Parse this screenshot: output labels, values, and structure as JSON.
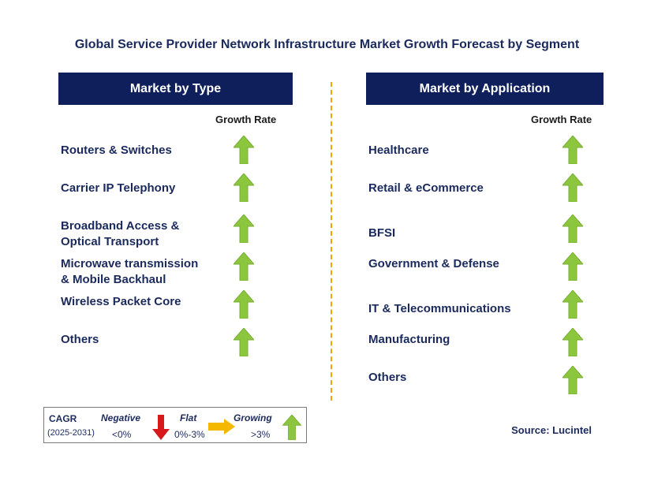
{
  "title": "Global Service Provider Network Infrastructure Market Growth Forecast by Segment",
  "left_panel": {
    "header": "Market by Type",
    "growth_label": "Growth Rate",
    "items": [
      {
        "line1": "Routers & Switches",
        "line2": ""
      },
      {
        "line1": "Carrier IP Telephony",
        "line2": ""
      },
      {
        "line1": "Broadband Access &",
        "line2": "Optical Transport"
      },
      {
        "line1": "Microwave transmission",
        "line2": "& Mobile Backhaul"
      },
      {
        "line1": "Wireless Packet Core",
        "line2": ""
      },
      {
        "line1": "Others",
        "line2": ""
      }
    ]
  },
  "right_panel": {
    "header": "Market by Application",
    "growth_label": "Growth Rate",
    "items": [
      {
        "line1": "Healthcare"
      },
      {
        "line1": "Retail & eCommerce"
      },
      {
        "line1": "BFSI"
      },
      {
        "line1": "Government & Defense"
      },
      {
        "line1": "IT & Telecommunications"
      },
      {
        "line1": "Manufacturing"
      },
      {
        "line1": "Others"
      }
    ]
  },
  "legend": {
    "cagr_label": "CAGR",
    "period": "(2025-2031)",
    "negative_label": "Negative",
    "negative_range": "<0%",
    "flat_label": "Flat",
    "flat_range": "0%-3%",
    "growing_label": "Growing",
    "growing_range": ">3%"
  },
  "source": "Source: Lucintel",
  "colors": {
    "header_bg": "#0e1f5b",
    "text": "#1b2a5c",
    "growing": "#8cc63f",
    "negative": "#d7191c",
    "flat": "#f5b800",
    "divider": "#f0a500"
  }
}
